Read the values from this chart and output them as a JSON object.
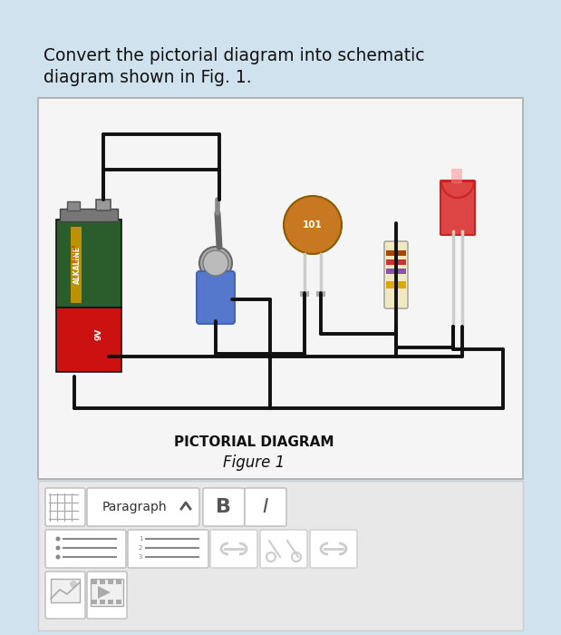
{
  "bg_color": "#cfe2ed",
  "title_text1": "Convert the pictorial diagram into schematic",
  "title_text2": "diagram shown in Fig. 1.",
  "title_fontsize": 13.5,
  "title_color": "#111111",
  "inner_bg": "#f5f5f5",
  "pictorial_label": "PICTORIAL DIAGRAM",
  "figure_label": "Figure 1",
  "wire_color": "#111111",
  "toolbar_bg": "#e8e8e8",
  "toolbar_border": "#cccccc",
  "btn_bg": "#ffffff",
  "btn_border": "#bbbbbb",
  "btn_disabled": "#d0d0d0"
}
